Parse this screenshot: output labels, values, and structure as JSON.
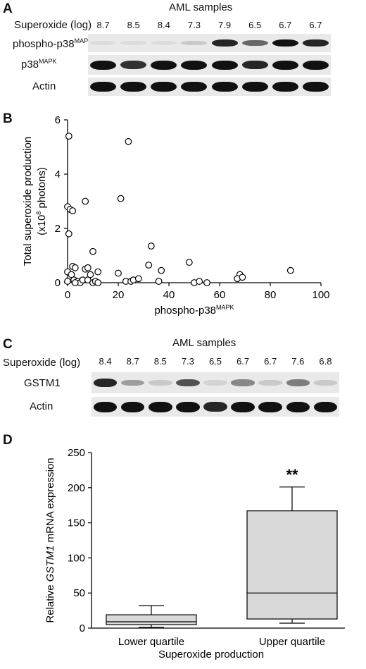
{
  "panelA": {
    "letter": "A",
    "title": "AML samples",
    "row_label": "Superoxide (log)",
    "superoxide_values": [
      "8.7",
      "8.5",
      "8.4",
      "7.3",
      "7.9",
      "6.5",
      "6.7",
      "6.7"
    ],
    "blots": {
      "phospho": {
        "label_main": "phospho-p38",
        "label_sup": "MAPK",
        "intensities": [
          0.05,
          0.05,
          0.05,
          0.15,
          0.9,
          0.6,
          1.0,
          0.9
        ]
      },
      "p38": {
        "label_main": "p38",
        "label_sup": "MAPK",
        "intensities": [
          1.0,
          0.85,
          1.0,
          1.0,
          1.0,
          0.9,
          1.0,
          1.0
        ]
      },
      "actin": {
        "label": "Actin",
        "intensities": [
          1,
          1,
          1,
          1,
          1,
          1,
          1,
          1
        ]
      }
    }
  },
  "panelB": {
    "letter": "B",
    "chart_data": {
      "type": "scatter",
      "xlabel_main": "phospho-p38",
      "xlabel_sup": "MAPK",
      "ylabel_line1": "Total superoxide production",
      "ylabel_line2_pre": "(x10",
      "ylabel_line2_sup": "8",
      "ylabel_line2_post": " photons)",
      "xlim": [
        0,
        100
      ],
      "ylim": [
        0,
        6
      ],
      "xticks": [
        "0",
        "20",
        "40",
        "60",
        "80",
        "100"
      ],
      "yticks": [
        "0",
        "2",
        "4",
        "6"
      ],
      "points": [
        [
          0.5,
          5.4
        ],
        [
          0,
          2.8
        ],
        [
          1,
          2.7
        ],
        [
          0.5,
          1.8
        ],
        [
          2,
          2.65
        ],
        [
          7,
          3.0
        ],
        [
          10,
          1.15
        ],
        [
          21,
          3.1
        ],
        [
          24,
          5.2
        ],
        [
          33,
          1.35
        ],
        [
          32,
          0.65
        ],
        [
          37,
          0.45
        ],
        [
          48,
          0.75
        ],
        [
          68,
          0.3
        ],
        [
          67,
          0.15
        ],
        [
          69,
          0.2
        ],
        [
          88,
          0.45
        ],
        [
          0,
          0.4
        ],
        [
          1,
          0.2
        ],
        [
          0,
          0.05
        ],
        [
          2,
          0.6
        ],
        [
          3,
          0.55
        ],
        [
          2.5,
          0.1
        ],
        [
          4,
          0.05
        ],
        [
          5,
          0.0
        ],
        [
          6,
          0.1
        ],
        [
          7,
          0.5
        ],
        [
          8,
          0.55
        ],
        [
          8,
          0.1
        ],
        [
          9,
          0.3
        ],
        [
          10,
          0.0
        ],
        [
          11,
          0.05
        ],
        [
          12,
          0.4
        ],
        [
          12,
          0.0
        ],
        [
          20,
          0.35
        ],
        [
          23,
          0.05
        ],
        [
          25,
          0.05
        ],
        [
          26,
          0.1
        ],
        [
          28,
          0.15
        ],
        [
          36,
          0.05
        ],
        [
          50,
          0.0
        ],
        [
          52,
          0.05
        ],
        [
          55,
          0.0
        ],
        [
          3,
          0.0
        ],
        [
          1.5,
          0.3
        ]
      ]
    }
  },
  "panelC": {
    "letter": "C",
    "title": "AML samples",
    "row_label": "Superoxide (log)",
    "superoxide_values": [
      "8.4",
      "8.7",
      "8.5",
      "7.3",
      "6.5",
      "6.7",
      "6.7",
      "7.6",
      "6.8"
    ],
    "blots": {
      "gstm1": {
        "label": "GSTM1",
        "intensities": [
          0.9,
          0.35,
          0.15,
          0.7,
          0.1,
          0.45,
          0.15,
          0.5,
          0.15
        ]
      },
      "actin": {
        "label": "Actin",
        "intensities": [
          1,
          1,
          1,
          1,
          0.9,
          1,
          1,
          1,
          1
        ]
      }
    }
  },
  "panelD": {
    "letter": "D",
    "chart_data": {
      "type": "box",
      "ylabel_pre": "Relative ",
      "ylabel_italic": "GSTM1",
      "ylabel_post": " mRNA expression",
      "xlabel": "Superoxide production",
      "categories": [
        "Lower quartile",
        "Upper quartile"
      ],
      "ylim": [
        0,
        250
      ],
      "yticks": [
        "0",
        "50",
        "100",
        "150",
        "200",
        "250"
      ],
      "boxes": [
        {
          "name": "Lower quartile",
          "min": 1,
          "q1": 5,
          "median": 9,
          "q3": 19,
          "max": 32
        },
        {
          "name": "Upper quartile",
          "min": 7,
          "q1": 13,
          "median": 50,
          "q3": 167,
          "max": 201
        }
      ],
      "significance": "**",
      "box_color": "#d9d9d9"
    }
  }
}
